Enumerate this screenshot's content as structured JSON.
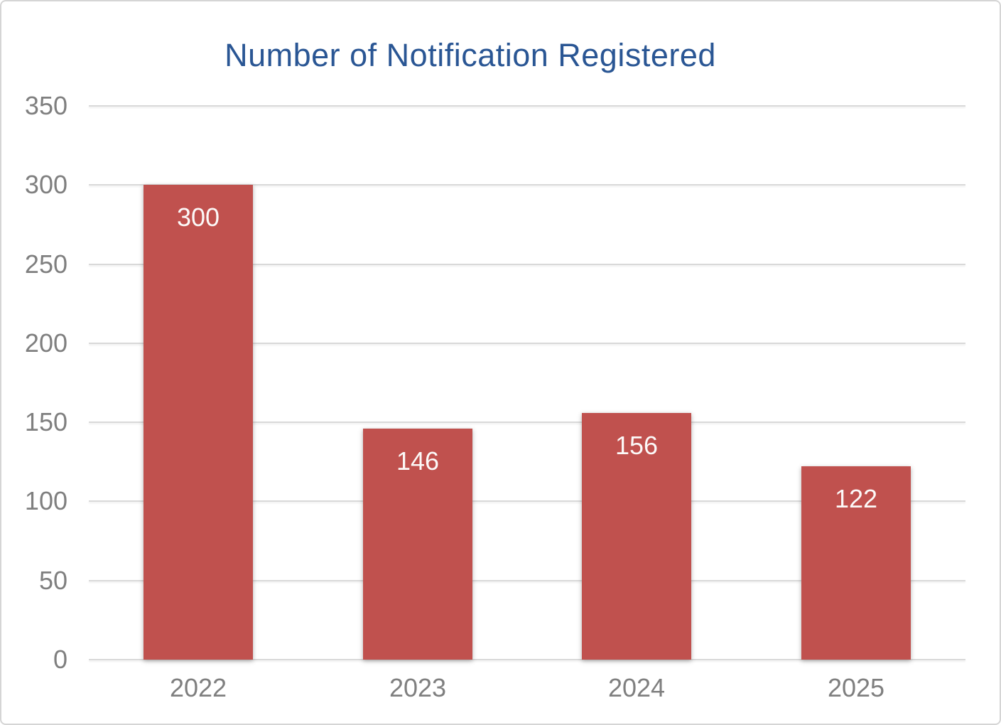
{
  "chart_data": {
    "type": "bar",
    "title": "Number of Notification Registered",
    "categories": [
      "2022",
      "2023",
      "2024",
      "2025"
    ],
    "values": [
      300,
      146,
      156,
      122
    ],
    "data_labels": [
      "300",
      "146",
      "156",
      "122"
    ],
    "xlabel": "",
    "ylabel": "",
    "ylim": [
      0,
      350
    ],
    "ytick_step": 50,
    "yticks": [
      "0",
      "50",
      "100",
      "150",
      "200",
      "250",
      "300",
      "350"
    ],
    "grid": true,
    "legend_position": "none",
    "colors": {
      "bar_fill": "#C0514E",
      "bar_value_label": "#FCF9F8",
      "title": "#2A5694",
      "axis_tick_label": "#7F7F7F",
      "gridline": "#D9D9D9",
      "card_border": "#D5D5D5",
      "background": "#FFFFFF"
    }
  }
}
